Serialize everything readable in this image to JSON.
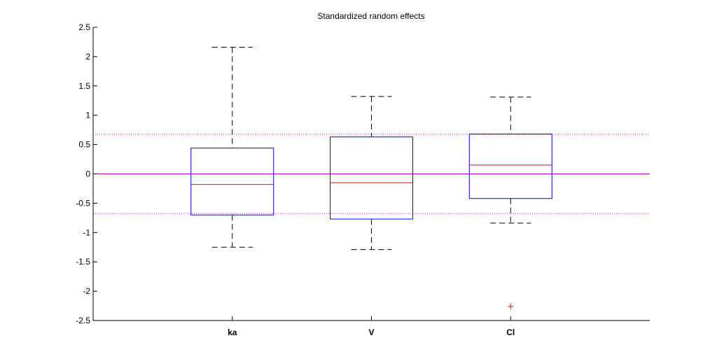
{
  "chart_data": {
    "type": "boxplot",
    "title": "Standardized random effects",
    "xlabel": "",
    "ylabel": "",
    "ylim": [
      -2.5,
      2.5
    ],
    "yticks": [
      2.5,
      2,
      1.5,
      1,
      0.5,
      0,
      -0.5,
      -1,
      -1.5,
      -2,
      -2.5
    ],
    "ytick_labels": [
      "2.5",
      "2",
      "1.5",
      "1",
      "0.5",
      "0",
      "-0.5",
      "-1",
      "-1.5",
      "-2",
      "-2.5"
    ],
    "categories": [
      "ka",
      "V",
      "Cl"
    ],
    "boxes": [
      {
        "category": "ka",
        "whisker_low": -1.25,
        "q1": -0.7,
        "median": -0.18,
        "q3": 0.44,
        "whisker_high": 2.16,
        "outliers": []
      },
      {
        "category": "V",
        "whisker_low": -1.29,
        "q1": -0.77,
        "median": -0.15,
        "q3": 0.63,
        "whisker_high": 1.32,
        "outliers": []
      },
      {
        "category": "Cl",
        "whisker_low": -0.84,
        "q1": -0.42,
        "median": 0.15,
        "q3": 0.68,
        "whisker_high": 1.31,
        "outliers": [
          -2.26
        ]
      }
    ],
    "reference_lines": [
      {
        "y": 0,
        "style": "solid"
      },
      {
        "y": 0.674,
        "style": "dotted"
      },
      {
        "y": -0.674,
        "style": "dotted"
      }
    ],
    "grid": false,
    "colors": {
      "box": "#0000ff",
      "median": "#ff0000",
      "whisker": "#000000",
      "outlier": "#ff0000",
      "zero_line": "#c000c0",
      "quartile_lines": "#ff00ff",
      "axis": "#000000"
    }
  }
}
